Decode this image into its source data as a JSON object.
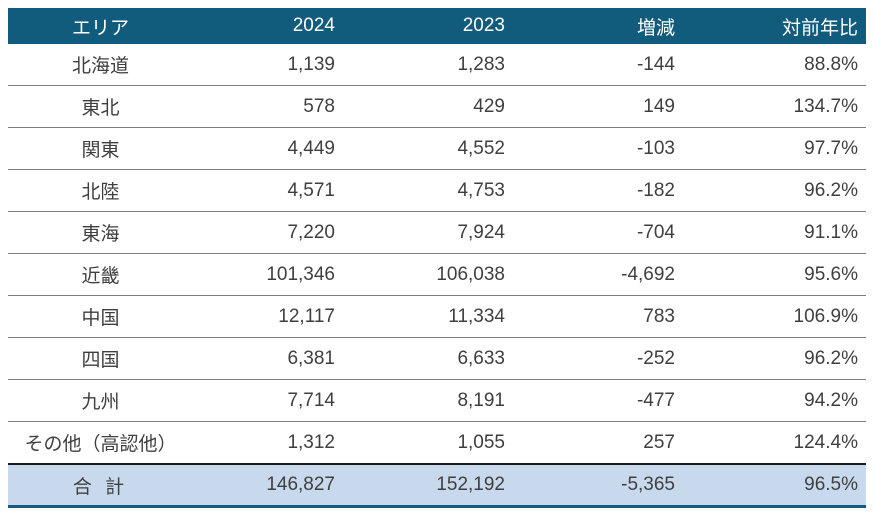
{
  "chart_data": {
    "type": "table",
    "title": "",
    "columns": [
      "エリア",
      "2024",
      "2023",
      "増減",
      "対前年比"
    ],
    "rows": [
      [
        "北海道",
        "1,139",
        "1,283",
        "-144",
        "88.8%"
      ],
      [
        "東北",
        "578",
        "429",
        "149",
        "134.7%"
      ],
      [
        "関東",
        "4,449",
        "4,552",
        "-103",
        "97.7%"
      ],
      [
        "北陸",
        "4,571",
        "4,753",
        "-182",
        "96.2%"
      ],
      [
        "東海",
        "7,220",
        "7,924",
        "-704",
        "91.1%"
      ],
      [
        "近畿",
        "101,346",
        "106,038",
        "-4,692",
        "95.6%"
      ],
      [
        "中国",
        "12,117",
        "11,334",
        "783",
        "106.9%"
      ],
      [
        "四国",
        "6,381",
        "6,633",
        "-252",
        "96.2%"
      ],
      [
        "九州",
        "7,714",
        "8,191",
        "-477",
        "94.2%"
      ],
      [
        "その他（高認他）",
        "1,312",
        "1,055",
        "257",
        "124.4%"
      ]
    ],
    "total_row": [
      "合 計",
      "146,827",
      "152,192",
      "-5,365",
      "96.5%"
    ],
    "layout_hints": {
      "first_column_align": "center",
      "number_columns_align": "right",
      "grid": "horizontal-lines-only"
    },
    "colors": {
      "header_bg": "#115B7C",
      "header_text": "#FFFFFF",
      "body_text": "#3F3F3F",
      "row_divider": "#7F7F7F",
      "total_row_bg": "#C8D9ED",
      "total_top_border": "#1A1A1A",
      "bottom_border": "#115B7C"
    }
  }
}
